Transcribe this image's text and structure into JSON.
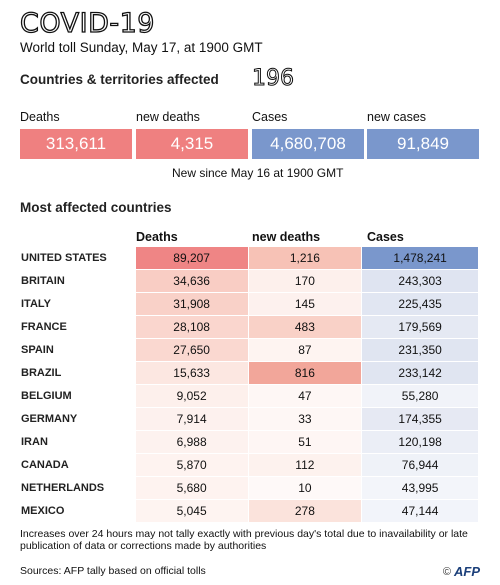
{
  "header": {
    "title": "COVID-19",
    "subtitle": "World toll Sunday, May 17, at 1900 GMT"
  },
  "affected": {
    "label": "Countries & territories affected",
    "value": "196"
  },
  "summary": [
    {
      "label": "Deaths",
      "value": "313,611",
      "color": "#ef8080"
    },
    {
      "label": "new deaths",
      "value": "4,315",
      "color": "#ef8080"
    },
    {
      "label": "Cases",
      "value": "4,680,708",
      "color": "#7a97cc"
    },
    {
      "label": "new cases",
      "value": "91,849",
      "color": "#7a97cc"
    }
  ],
  "since_note": "New since  May 16 at 1900 GMT",
  "table": {
    "title": "Most affected countries",
    "columns": [
      "Deaths",
      "new deaths",
      "Cases"
    ],
    "rows": [
      {
        "country": "UNITED STATES",
        "deaths": "89,207",
        "new_deaths": "1,216",
        "cases": "1,478,241",
        "deaths_bg": "#ef8585",
        "new_bg": "#f7c2b6",
        "cases_bg": "#7a97cc"
      },
      {
        "country": "BRITAIN",
        "deaths": "34,636",
        "new_deaths": "170",
        "cases": "243,303",
        "deaths_bg": "#f9cdc4",
        "new_bg": "#fdf0ec",
        "cases_bg": "#dfe4f1"
      },
      {
        "country": "ITALY",
        "deaths": "31,908",
        "new_deaths": "145",
        "cases": "225,435",
        "deaths_bg": "#f9d1c8",
        "new_bg": "#fdf1ee",
        "cases_bg": "#e1e6f2"
      },
      {
        "country": "FRANCE",
        "deaths": "28,108",
        "new_deaths": "483",
        "cases": "179,569",
        "deaths_bg": "#fad6ce",
        "new_bg": "#f9d1c7",
        "cases_bg": "#e5e9f3"
      },
      {
        "country": "SPAIN",
        "deaths": "27,650",
        "new_deaths": "87",
        "cases": "231,350",
        "deaths_bg": "#fad8d0",
        "new_bg": "#fef4f1",
        "cases_bg": "#e0e5f1"
      },
      {
        "country": "BRAZIL",
        "deaths": "15,633",
        "new_deaths": "816",
        "cases": "233,142",
        "deaths_bg": "#fce7e1",
        "new_bg": "#f2a69a",
        "cases_bg": "#e0e5f1"
      },
      {
        "country": "BELGIUM",
        "deaths": "9,052",
        "new_deaths": "47",
        "cases": "55,280",
        "deaths_bg": "#fdf0ec",
        "new_bg": "#fef7f5",
        "cases_bg": "#f1f3f9"
      },
      {
        "country": "GERMANY",
        "deaths": "7,914",
        "new_deaths": "33",
        "cases": "174,355",
        "deaths_bg": "#fdf1ee",
        "new_bg": "#fef7f5",
        "cases_bg": "#e6e9f3"
      },
      {
        "country": "IRAN",
        "deaths": "6,988",
        "new_deaths": "51",
        "cases": "120,198",
        "deaths_bg": "#fdf2ef",
        "new_bg": "#fef6f4",
        "cases_bg": "#ebeef6"
      },
      {
        "country": "CANADA",
        "deaths": "5,870",
        "new_deaths": "112",
        "cases": "76,944",
        "deaths_bg": "#fef3f0",
        "new_bg": "#fdf2ee",
        "cases_bg": "#eff2f8"
      },
      {
        "country": "NETHERLANDS",
        "deaths": "5,680",
        "new_deaths": "10",
        "cases": "43,995",
        "deaths_bg": "#fef3f0",
        "new_bg": "#fef9f8",
        "cases_bg": "#f3f5fa"
      },
      {
        "country": "MEXICO",
        "deaths": "5,045",
        "new_deaths": "278",
        "cases": "47,144",
        "deaths_bg": "#fef4f1",
        "new_bg": "#fbe3dc",
        "cases_bg": "#f2f4fa"
      }
    ]
  },
  "footnote": "Increases over 24 hours may not tally exactly with previous day's total due to inavailability or late publication of data or corrections made by authorities",
  "source": "Sources: AFP tally based on official tolls",
  "credit": {
    "copyright": "©",
    "logo": "AFP"
  }
}
